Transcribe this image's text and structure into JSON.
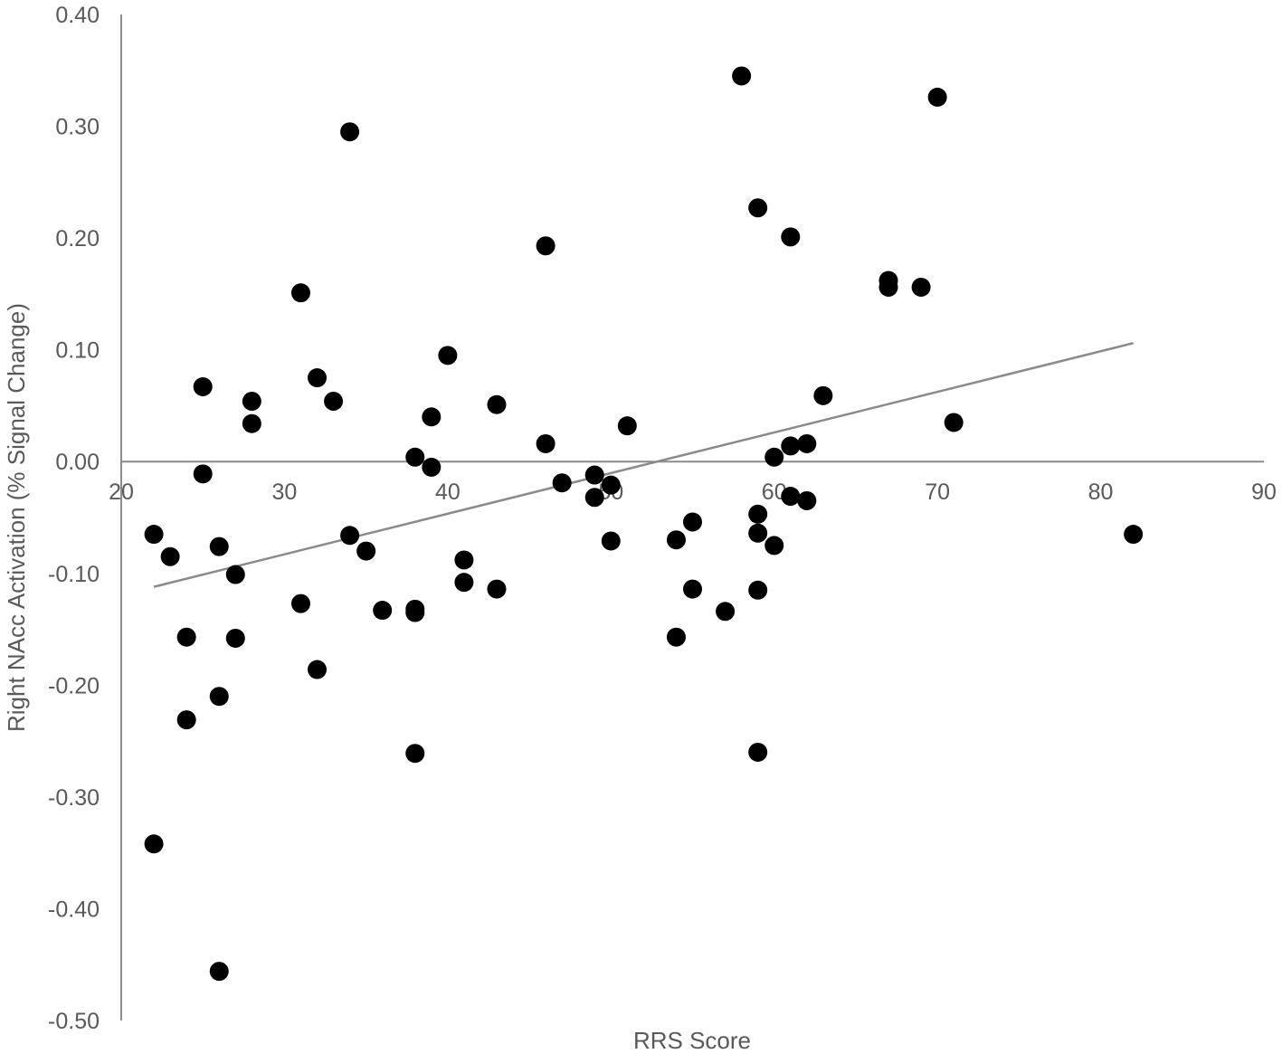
{
  "chart_data": {
    "type": "scatter",
    "title": "",
    "xlabel": "RRS Score",
    "ylabel": "Right NAcc Activation (% Signal Change)",
    "xlim": [
      20,
      90
    ],
    "ylim": [
      -0.5,
      0.4
    ],
    "x_ticks": [
      "20",
      "30",
      "40",
      "50",
      "60",
      "70",
      "80",
      "90"
    ],
    "y_ticks": [
      "0.40",
      "0.30",
      "0.20",
      "0.10",
      "0.00",
      "-0.10",
      "-0.20",
      "-0.30",
      "-0.40",
      "-0.50"
    ],
    "grid": false,
    "legend": "none",
    "marker_color": "#000000",
    "trendline": {
      "x": [
        22,
        82
      ],
      "y": [
        -0.112,
        0.106
      ],
      "color": "#8a8a8a"
    },
    "points": [
      {
        "x": 22,
        "y": -0.065
      },
      {
        "x": 22,
        "y": -0.342
      },
      {
        "x": 23,
        "y": -0.085
      },
      {
        "x": 24,
        "y": -0.157
      },
      {
        "x": 24,
        "y": -0.231
      },
      {
        "x": 25,
        "y": 0.067
      },
      {
        "x": 25,
        "y": -0.011
      },
      {
        "x": 26,
        "y": -0.076
      },
      {
        "x": 26,
        "y": -0.21
      },
      {
        "x": 26,
        "y": -0.456
      },
      {
        "x": 27,
        "y": -0.101
      },
      {
        "x": 27,
        "y": -0.158
      },
      {
        "x": 28,
        "y": 0.054
      },
      {
        "x": 28,
        "y": 0.034
      },
      {
        "x": 31,
        "y": 0.151
      },
      {
        "x": 31,
        "y": -0.127
      },
      {
        "x": 32,
        "y": 0.075
      },
      {
        "x": 32,
        "y": -0.186
      },
      {
        "x": 33,
        "y": 0.054
      },
      {
        "x": 34,
        "y": 0.295
      },
      {
        "x": 34,
        "y": -0.066
      },
      {
        "x": 35,
        "y": -0.08
      },
      {
        "x": 36,
        "y": -0.133
      },
      {
        "x": 38,
        "y": 0.004
      },
      {
        "x": 38,
        "y": -0.132
      },
      {
        "x": 38,
        "y": -0.135
      },
      {
        "x": 38,
        "y": -0.261
      },
      {
        "x": 39,
        "y": 0.04
      },
      {
        "x": 39,
        "y": -0.005
      },
      {
        "x": 40,
        "y": 0.095
      },
      {
        "x": 41,
        "y": -0.088
      },
      {
        "x": 41,
        "y": -0.108
      },
      {
        "x": 43,
        "y": 0.051
      },
      {
        "x": 43,
        "y": -0.114
      },
      {
        "x": 46,
        "y": 0.193
      },
      {
        "x": 46,
        "y": 0.016
      },
      {
        "x": 47,
        "y": -0.019
      },
      {
        "x": 49,
        "y": -0.012
      },
      {
        "x": 49,
        "y": -0.032
      },
      {
        "x": 50,
        "y": -0.021
      },
      {
        "x": 50,
        "y": -0.071
      },
      {
        "x": 51,
        "y": 0.032
      },
      {
        "x": 54,
        "y": -0.07
      },
      {
        "x": 54,
        "y": -0.157
      },
      {
        "x": 55,
        "y": -0.054
      },
      {
        "x": 55,
        "y": -0.114
      },
      {
        "x": 57,
        "y": -0.134
      },
      {
        "x": 58,
        "y": 0.345
      },
      {
        "x": 59,
        "y": 0.227
      },
      {
        "x": 59,
        "y": -0.047
      },
      {
        "x": 59,
        "y": -0.064
      },
      {
        "x": 59,
        "y": -0.115
      },
      {
        "x": 59,
        "y": -0.26
      },
      {
        "x": 60,
        "y": 0.004
      },
      {
        "x": 60,
        "y": -0.075
      },
      {
        "x": 61,
        "y": 0.201
      },
      {
        "x": 61,
        "y": 0.014
      },
      {
        "x": 61,
        "y": -0.031
      },
      {
        "x": 62,
        "y": 0.016
      },
      {
        "x": 62,
        "y": -0.035
      },
      {
        "x": 63,
        "y": 0.059
      },
      {
        "x": 67,
        "y": 0.162
      },
      {
        "x": 67,
        "y": 0.156
      },
      {
        "x": 69,
        "y": 0.156
      },
      {
        "x": 70,
        "y": 0.326
      },
      {
        "x": 71,
        "y": 0.035
      },
      {
        "x": 82,
        "y": -0.065
      }
    ]
  }
}
